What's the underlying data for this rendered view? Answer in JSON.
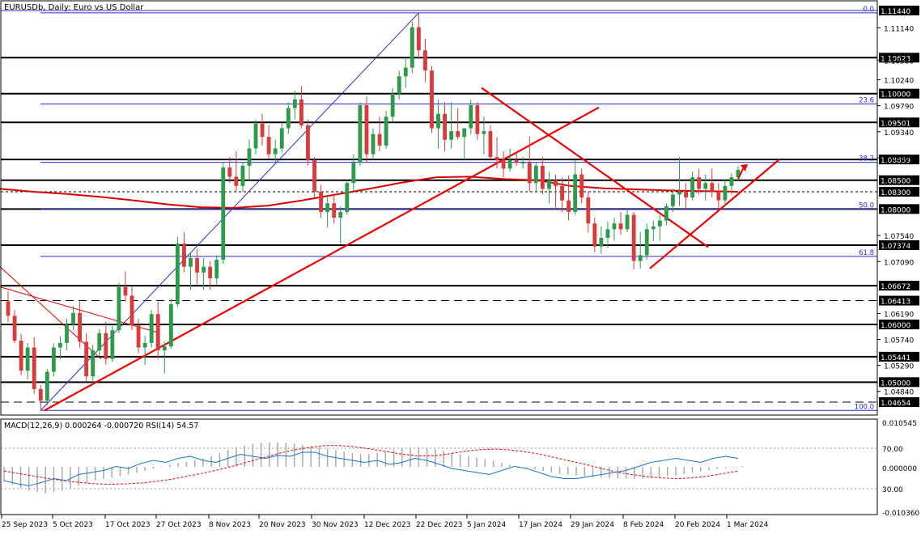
{
  "chart_data": [
    {
      "type": "candlestick",
      "title": "EURUSDb, Daily: Euro vs US Dollar",
      "symbol": "EURUSDb",
      "timeframe": "Daily",
      "ylim": [
        1.0441,
        1.1165
      ],
      "grid": false,
      "x_tick_labels": [
        "25 Sep 2023",
        "5 Oct 2023",
        "17 Oct 2023",
        "27 Oct 2023",
        "8 Nov 2023",
        "20 Nov 2023",
        "30 Nov 2023",
        "12 Dec 2023",
        "22 Dec 2023",
        "5 Jan 2024",
        "17 Jan 2024",
        "29 Jan 2024",
        "8 Feb 2024",
        "20 Feb 2024",
        "1 Mar 2024"
      ],
      "y_tick_labels": [
        "1.11440",
        "1.11140",
        "1.10580",
        "1.10240",
        "1.09790",
        "1.09340",
        "1.08890",
        "1.08300",
        "1.07540",
        "1.07090",
        "1.06190",
        "1.05740",
        "1.05290",
        "1.04840"
      ],
      "horizontal_levels": [
        {
          "value": 1.1144,
          "label": "1.11440"
        },
        {
          "value": 1.10623,
          "label": "1.10623"
        },
        {
          "value": 1.1,
          "label": "1.10000"
        },
        {
          "value": 1.09501,
          "label": "1.09501"
        },
        {
          "value": 1.08859,
          "label": "1.08859"
        },
        {
          "value": 1.085,
          "label": "1.08500"
        },
        {
          "value": 1.083,
          "label": "1.08300"
        },
        {
          "value": 1.08,
          "label": "1.08000"
        },
        {
          "value": 1.07374,
          "label": "1.07374"
        },
        {
          "value": 1.06672,
          "label": "1.06672"
        },
        {
          "value": 1.06413,
          "label": "1.06413"
        },
        {
          "value": 1.06,
          "label": "1.06000"
        },
        {
          "value": 1.05441,
          "label": "1.05441"
        },
        {
          "value": 1.05,
          "label": "1.05000"
        },
        {
          "value": 1.04654,
          "label": "1.04654"
        }
      ],
      "fibonacci": [
        {
          "level": "0.0",
          "value": 1.114
        },
        {
          "level": "23.6",
          "value": 1.0982
        },
        {
          "level": "38.2",
          "value": 1.0881
        },
        {
          "level": "50.0",
          "value": 1.08
        },
        {
          "level": "61.8",
          "value": 1.0718
        },
        {
          "level": "100.0",
          "value": 1.0451
        }
      ],
      "candles": [
        [
          1.064,
          1.0657,
          1.0604,
          1.0615
        ],
        [
          1.0615,
          1.0625,
          1.0568,
          1.0572
        ],
        [
          1.0572,
          1.0584,
          1.0512,
          1.052
        ],
        [
          1.052,
          1.0568,
          1.0505,
          1.056
        ],
        [
          1.056,
          1.0578,
          1.048,
          1.0488
        ],
        [
          1.0488,
          1.0495,
          1.0451,
          1.0468
        ],
        [
          1.0468,
          1.0523,
          1.046,
          1.0518
        ],
        [
          1.0518,
          1.0567,
          1.051,
          1.056
        ],
        [
          1.056,
          1.058,
          1.054,
          1.0568
        ],
        [
          1.0568,
          1.061,
          1.0555,
          1.06
        ],
        [
          1.06,
          1.0632,
          1.059,
          1.062
        ],
        [
          1.062,
          1.064,
          1.056,
          1.057
        ],
        [
          1.057,
          1.0585,
          1.05,
          1.051
        ],
        [
          1.051,
          1.0565,
          1.0495,
          1.0555
        ],
        [
          1.0555,
          1.0592,
          1.0545,
          1.0585
        ],
        [
          1.0585,
          1.0605,
          1.053,
          1.054
        ],
        [
          1.054,
          1.06,
          1.0535,
          1.059
        ],
        [
          1.059,
          1.0672,
          1.0585,
          1.0665
        ],
        [
          1.0665,
          1.0692,
          1.064,
          1.065
        ],
        [
          1.065,
          1.0665,
          1.059,
          1.0598
        ],
        [
          1.0598,
          1.061,
          1.055,
          1.056
        ],
        [
          1.056,
          1.058,
          1.053,
          1.0568
        ],
        [
          1.0568,
          1.0625,
          1.056,
          1.0618
        ],
        [
          1.0618,
          1.064,
          1.054,
          1.0555
        ],
        [
          1.0555,
          1.057,
          1.0515,
          1.0562
        ],
        [
          1.0562,
          1.0645,
          1.0558,
          1.0635
        ],
        [
          1.0635,
          1.0752,
          1.063,
          1.074
        ],
        [
          1.074,
          1.076,
          1.069,
          1.07
        ],
        [
          1.07,
          1.0725,
          1.066,
          1.0715
        ],
        [
          1.0715,
          1.073,
          1.067,
          1.069
        ],
        [
          1.069,
          1.0715,
          1.066,
          1.07
        ],
        [
          1.07,
          1.071,
          1.066,
          1.068
        ],
        [
          1.068,
          1.072,
          1.067,
          1.0712
        ],
        [
          1.0712,
          1.088,
          1.0705,
          1.0872
        ],
        [
          1.0872,
          1.089,
          1.0845,
          1.0856
        ],
        [
          1.0856,
          1.09,
          1.083,
          1.084
        ],
        [
          1.084,
          1.088,
          1.083,
          1.0875
        ],
        [
          1.0875,
          1.092,
          1.085,
          1.0905
        ],
        [
          1.0905,
          1.0955,
          1.0895,
          1.0948
        ],
        [
          1.0948,
          1.0965,
          1.091,
          1.0925
        ],
        [
          1.0925,
          1.0945,
          1.0888,
          1.0895
        ],
        [
          1.0895,
          1.092,
          1.0882,
          1.0905
        ],
        [
          1.0905,
          1.095,
          1.0898,
          1.094
        ],
        [
          1.094,
          1.0985,
          1.093,
          1.0975
        ],
        [
          1.0975,
          1.1005,
          1.0955,
          1.099
        ],
        [
          1.099,
          1.1013,
          1.094,
          1.0945
        ],
        [
          1.0945,
          1.0955,
          1.0875,
          1.0885
        ],
        [
          1.0885,
          1.089,
          1.082,
          1.083
        ],
        [
          1.083,
          1.0842,
          1.0785,
          1.0795
        ],
        [
          1.0795,
          1.082,
          1.0768,
          1.081
        ],
        [
          1.081,
          1.0826,
          1.0775,
          1.0785
        ],
        [
          1.0785,
          1.0805,
          1.074,
          1.0795
        ],
        [
          1.0795,
          1.085,
          1.079,
          1.0845
        ],
        [
          1.0845,
          1.0895,
          1.083,
          1.088
        ],
        [
          1.088,
          1.0985,
          1.0875,
          1.098
        ],
        [
          1.098,
          1.0995,
          1.088,
          1.0895
        ],
        [
          1.0895,
          1.094,
          1.0885,
          1.093
        ],
        [
          1.093,
          1.096,
          1.09,
          1.091
        ],
        [
          1.091,
          1.097,
          1.0905,
          1.096
        ],
        [
          1.096,
          1.101,
          1.095,
          1.1
        ],
        [
          1.1,
          1.104,
          1.099,
          1.103
        ],
        [
          1.103,
          1.106,
          1.101,
          1.1045
        ],
        [
          1.1045,
          1.1125,
          1.1035,
          1.1115
        ],
        [
          1.1115,
          1.114,
          1.106,
          1.1075
        ],
        [
          1.1075,
          1.1095,
          1.102,
          1.104
        ],
        [
          1.104,
          1.1048,
          1.0932,
          1.094
        ],
        [
          1.094,
          1.099,
          1.0905,
          1.0965
        ],
        [
          1.0965,
          1.0985,
          1.09,
          1.092
        ],
        [
          1.092,
          1.0985,
          1.0905,
          1.0935
        ],
        [
          1.0935,
          1.0975,
          1.092,
          1.0925
        ],
        [
          1.0925,
          1.094,
          1.0885,
          1.094
        ],
        [
          1.094,
          1.099,
          1.093,
          1.098
        ],
        [
          1.098,
          1.0985,
          1.092,
          1.093
        ],
        [
          1.093,
          1.096,
          1.0895,
          1.0935
        ],
        [
          1.0935,
          1.0945,
          1.0885,
          1.089
        ],
        [
          1.089,
          1.0925,
          1.087,
          1.0885
        ],
        [
          1.0885,
          1.09,
          1.0855,
          1.087
        ],
        [
          1.087,
          1.0905,
          1.0865,
          1.0885
        ],
        [
          1.0885,
          1.09,
          1.0875,
          1.088
        ],
        [
          1.088,
          1.089,
          1.087,
          1.088
        ],
        [
          1.088,
          1.0925,
          1.083,
          1.0845
        ],
        [
          1.0845,
          1.088,
          1.083,
          1.0875
        ],
        [
          1.0875,
          1.089,
          1.0825,
          1.0835
        ],
        [
          1.0835,
          1.0865,
          1.081,
          1.085
        ],
        [
          1.085,
          1.086,
          1.08,
          1.084
        ],
        [
          1.084,
          1.0855,
          1.0795,
          1.0815
        ],
        [
          1.0815,
          1.0858,
          1.078,
          1.0795
        ],
        [
          1.0795,
          1.0885,
          1.079,
          1.086
        ],
        [
          1.086,
          1.087,
          1.081,
          1.082
        ],
        [
          1.082,
          1.083,
          1.076,
          1.0775
        ],
        [
          1.0775,
          1.0785,
          1.0725,
          1.0735
        ],
        [
          1.0735,
          1.077,
          1.0722,
          1.075
        ],
        [
          1.075,
          1.0778,
          1.0732,
          1.0765
        ],
        [
          1.0765,
          1.0785,
          1.0745,
          1.0775
        ],
        [
          1.0775,
          1.0795,
          1.0755,
          1.0765
        ],
        [
          1.0765,
          1.08,
          1.076,
          1.079
        ],
        [
          1.079,
          1.0795,
          1.0695,
          1.071
        ],
        [
          1.071,
          1.076,
          1.0697,
          1.072
        ],
        [
          1.072,
          1.0775,
          1.0712,
          1.0765
        ],
        [
          1.0765,
          1.078,
          1.0745,
          1.077
        ],
        [
          1.077,
          1.079,
          1.0745,
          1.078
        ],
        [
          1.078,
          1.081,
          1.0772,
          1.0805
        ],
        [
          1.0805,
          1.0835,
          1.0795,
          1.0825
        ],
        [
          1.0825,
          1.089,
          1.0805,
          1.083
        ],
        [
          1.083,
          1.0845,
          1.08,
          1.082
        ],
        [
          1.082,
          1.0865,
          1.0815,
          1.0855
        ],
        [
          1.0855,
          1.087,
          1.0825,
          1.0835
        ],
        [
          1.0835,
          1.086,
          1.0815,
          1.0845
        ],
        [
          1.0845,
          1.087,
          1.082,
          1.083
        ],
        [
          1.083,
          1.0845,
          1.08,
          1.0815
        ],
        [
          1.0815,
          1.085,
          1.0805,
          1.084
        ],
        [
          1.084,
          1.0862,
          1.0825,
          1.0855
        ],
        [
          1.0855,
          1.0875,
          1.0848,
          1.0868
        ]
      ],
      "moving_average_points": [
        1.0835,
        1.083,
        1.0826,
        1.0821,
        1.0815,
        1.0808,
        1.0803,
        1.0802,
        1.0806,
        1.0815,
        1.0825,
        1.0835,
        1.0846,
        1.0855,
        1.0856,
        1.0852,
        1.085,
        1.084,
        1.0836,
        1.0834,
        1.0832,
        1.0831,
        1.083
      ],
      "trendlines": [
        {
          "from": [
            1.0451,
            1.0451
          ],
          "to": [
            1.114,
            1.114
          ]
        },
        {
          "from": [
            1.0451,
            1.0451
          ],
          "to": [
            1.0979,
            1.0979
          ]
        }
      ],
      "indicator_legend": "MACD(12,26,9) 0.000264 -0.000720 RSI(14) 54.57",
      "indicator_y_labels": [
        "0.010545",
        "70.00",
        "0.000000",
        "30.00",
        "-0.010360"
      ],
      "macd_histogram": [
        -0.0035,
        -0.0042,
        -0.005,
        -0.0056,
        -0.006,
        -0.0062,
        -0.006,
        -0.0056,
        -0.005,
        -0.0044,
        -0.0038,
        -0.0032,
        -0.0028,
        -0.0025,
        -0.0022,
        -0.0018,
        -0.0014,
        -0.0009,
        -0.0004,
        0.0001,
        0.0005,
        0.0009,
        0.0012,
        0.0016,
        0.002,
        0.0025,
        0.0032,
        0.004,
        0.0046,
        0.005,
        0.0054,
        0.0057,
        0.0058,
        0.0058,
        0.0057,
        0.0055,
        0.0052,
        0.0049,
        0.0046,
        0.0043,
        0.004,
        0.0036,
        0.0032,
        0.003,
        0.003,
        0.0032,
        0.0036,
        0.004,
        0.0043,
        0.0045,
        0.0046,
        0.0045,
        0.0042,
        0.0038,
        0.0034,
        0.003,
        0.0026,
        0.0022,
        0.0018,
        0.0014,
        0.001,
        0.0006,
        0.0002,
        -0.0002,
        -0.0006,
        -0.001,
        -0.0013,
        -0.0016,
        -0.0018,
        -0.002,
        -0.0022,
        -0.0024,
        -0.0025,
        -0.0026,
        -0.0027,
        -0.0028,
        -0.0028,
        -0.0027,
        -0.0026,
        -0.0024,
        -0.0022,
        -0.002,
        -0.0017,
        -0.0014,
        -0.0011,
        -0.0008,
        -0.0005,
        -0.0003,
        -0.0001,
        0.0002
      ],
      "macd_signal": [
        -0.001,
        -0.0016,
        -0.0022,
        -0.0028,
        -0.0033,
        -0.0037,
        -0.004,
        -0.0041,
        -0.004,
        -0.0038,
        -0.0034,
        -0.0029,
        -0.0022,
        -0.0015,
        -0.0007,
        0.0002,
        0.0012,
        0.0022,
        0.0032,
        0.004,
        0.0046,
        0.005,
        0.005,
        0.0047,
        0.0042,
        0.0036,
        0.003,
        0.0026,
        0.0026,
        0.003,
        0.0036,
        0.004,
        0.0042,
        0.004,
        0.0036,
        0.003,
        0.0022,
        0.0014,
        0.0006,
        -0.0003,
        -0.0012,
        -0.0018,
        -0.0023,
        -0.0026,
        -0.0028,
        -0.0026,
        -0.0022,
        -0.0016,
        -0.001
      ],
      "rsi": [
        38,
        35,
        33,
        36,
        40,
        38,
        44,
        46,
        48,
        52,
        50,
        55,
        58,
        56,
        60,
        62,
        58,
        56,
        60,
        64,
        62,
        60,
        63,
        62,
        66,
        66,
        62,
        60,
        58,
        56,
        58,
        54,
        56,
        60,
        58,
        54,
        50,
        48,
        46,
        44,
        48,
        52,
        50,
        46,
        42,
        40,
        40,
        42,
        44,
        46,
        48,
        52,
        56,
        58,
        60,
        58,
        56,
        60,
        62,
        60
      ]
    }
  ]
}
